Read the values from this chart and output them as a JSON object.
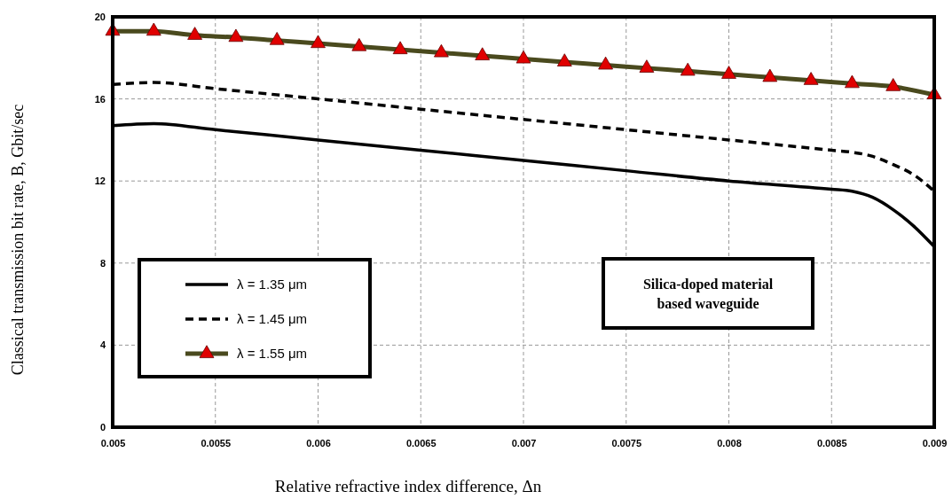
{
  "chart_data": {
    "type": "line",
    "xlabel": "Relative refractive index difference, Δn",
    "ylabel": "Classical transmission bit rate, B, Gbit/sec",
    "annotations": [
      "Silica-doped material based waveguide"
    ],
    "xlim": [
      0.005,
      0.009
    ],
    "xticks": [
      0.005,
      0.0055,
      0.006,
      0.0065,
      0.007,
      0.0075,
      0.008,
      0.0085,
      0.009
    ],
    "ylim": [
      0,
      20
    ],
    "yticks": [
      0,
      4,
      8,
      12,
      16,
      20
    ],
    "grid": true,
    "legend": "bottom left",
    "series": [
      {
        "name": "λ = 1.35 μm",
        "color": "#000000",
        "line_style": "solid",
        "marker": "none",
        "x": [
          0.005,
          0.0052,
          0.0055,
          0.006,
          0.0065,
          0.007,
          0.0075,
          0.008,
          0.0085,
          0.0086,
          0.0087,
          0.0088,
          0.0089,
          0.009
        ],
        "values": [
          14.7,
          14.8,
          14.5,
          14.0,
          13.5,
          13.0,
          12.5,
          12.0,
          11.6,
          11.5,
          11.2,
          10.6,
          9.8,
          8.8
        ]
      },
      {
        "name": "λ = 1.45 μm",
        "color": "#000000",
        "line_style": "dashed",
        "marker": "none",
        "x": [
          0.005,
          0.0052,
          0.0055,
          0.006,
          0.0065,
          0.007,
          0.0075,
          0.008,
          0.0085,
          0.0086,
          0.0087,
          0.0088,
          0.0089,
          0.009
        ],
        "values": [
          16.7,
          16.8,
          16.5,
          16.0,
          15.5,
          15.0,
          14.5,
          14.0,
          13.5,
          13.4,
          13.2,
          12.8,
          12.3,
          11.5
        ]
      },
      {
        "name": "λ = 1.55 μm",
        "color": "#4a4a1e",
        "line_style": "solid",
        "marker": "triangle",
        "colors": [
          "#e00000",
          "#e00000",
          "#e00000",
          "#e00000",
          "#e00000",
          "#e00000",
          "#e00000",
          "#e00000",
          "#e00000",
          "#e00000",
          "#e00000",
          "#e00000",
          "#e00000",
          "#e00000",
          "#e00000",
          "#e00000",
          "#e00000",
          "#e00000",
          "#e00000",
          "#e00000",
          "#e00000"
        ],
        "x": [
          0.005,
          0.0052,
          0.0054,
          0.0056,
          0.0058,
          0.006,
          0.0062,
          0.0064,
          0.0066,
          0.0068,
          0.007,
          0.0072,
          0.0074,
          0.0076,
          0.0078,
          0.008,
          0.0082,
          0.0084,
          0.0086,
          0.0088,
          0.009
        ],
        "values": [
          19.3,
          19.3,
          19.1,
          19.0,
          18.85,
          18.7,
          18.55,
          18.4,
          18.25,
          18.1,
          17.95,
          17.8,
          17.65,
          17.5,
          17.35,
          17.2,
          17.05,
          16.9,
          16.75,
          16.6,
          16.2
        ]
      }
    ]
  }
}
